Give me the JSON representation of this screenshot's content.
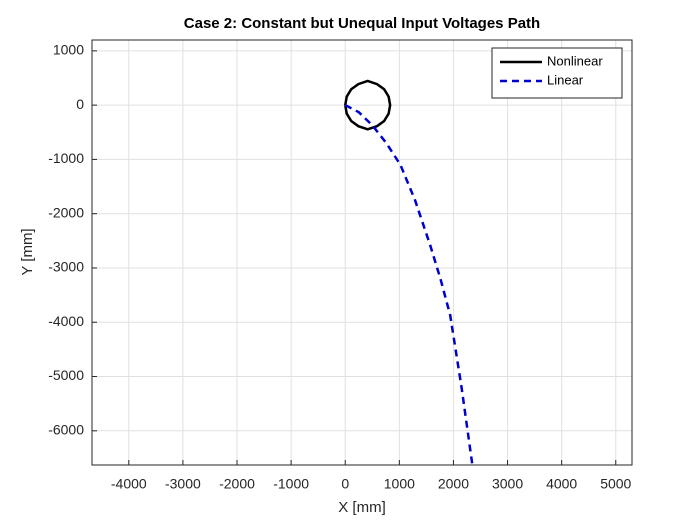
{
  "chart_data": {
    "type": "line",
    "title": "Case 2: Constant but Unequal Input Voltages Path",
    "xlabel": "X [mm]",
    "ylabel": "Y [mm]",
    "xlim": [
      -4680,
      5300
    ],
    "ylim": [
      -6630,
      1200
    ],
    "xticks": [
      -4000,
      -3000,
      -2000,
      -1000,
      0,
      1000,
      2000,
      3000,
      4000,
      5000
    ],
    "yticks": [
      -6000,
      -5000,
      -4000,
      -3000,
      -2000,
      -1000,
      0,
      1000
    ],
    "grid": true,
    "legend_position": "top-right",
    "series": [
      {
        "name": "Nonlinear",
        "color": "#000000",
        "dash": "solid",
        "x": [
          0,
          28,
          111,
          243,
          415,
          587,
          719,
          802,
          830,
          802,
          719,
          587,
          415,
          243,
          111,
          28,
          0
        ],
        "y": [
          0,
          157,
          293,
          388,
          445,
          388,
          293,
          157,
          0,
          -157,
          -293,
          -388,
          -445,
          -388,
          -293,
          -157,
          0
        ]
      },
      {
        "name": "Linear",
        "color": "#0000cc",
        "dash": "dashed",
        "x": [
          0,
          250,
          500,
          760,
          1020,
          1290,
          1570,
          1760,
          1940,
          2150,
          2350
        ],
        "y": [
          0,
          -130,
          -370,
          -700,
          -1100,
          -1750,
          -2580,
          -3200,
          -3870,
          -5200,
          -6630
        ]
      }
    ]
  }
}
